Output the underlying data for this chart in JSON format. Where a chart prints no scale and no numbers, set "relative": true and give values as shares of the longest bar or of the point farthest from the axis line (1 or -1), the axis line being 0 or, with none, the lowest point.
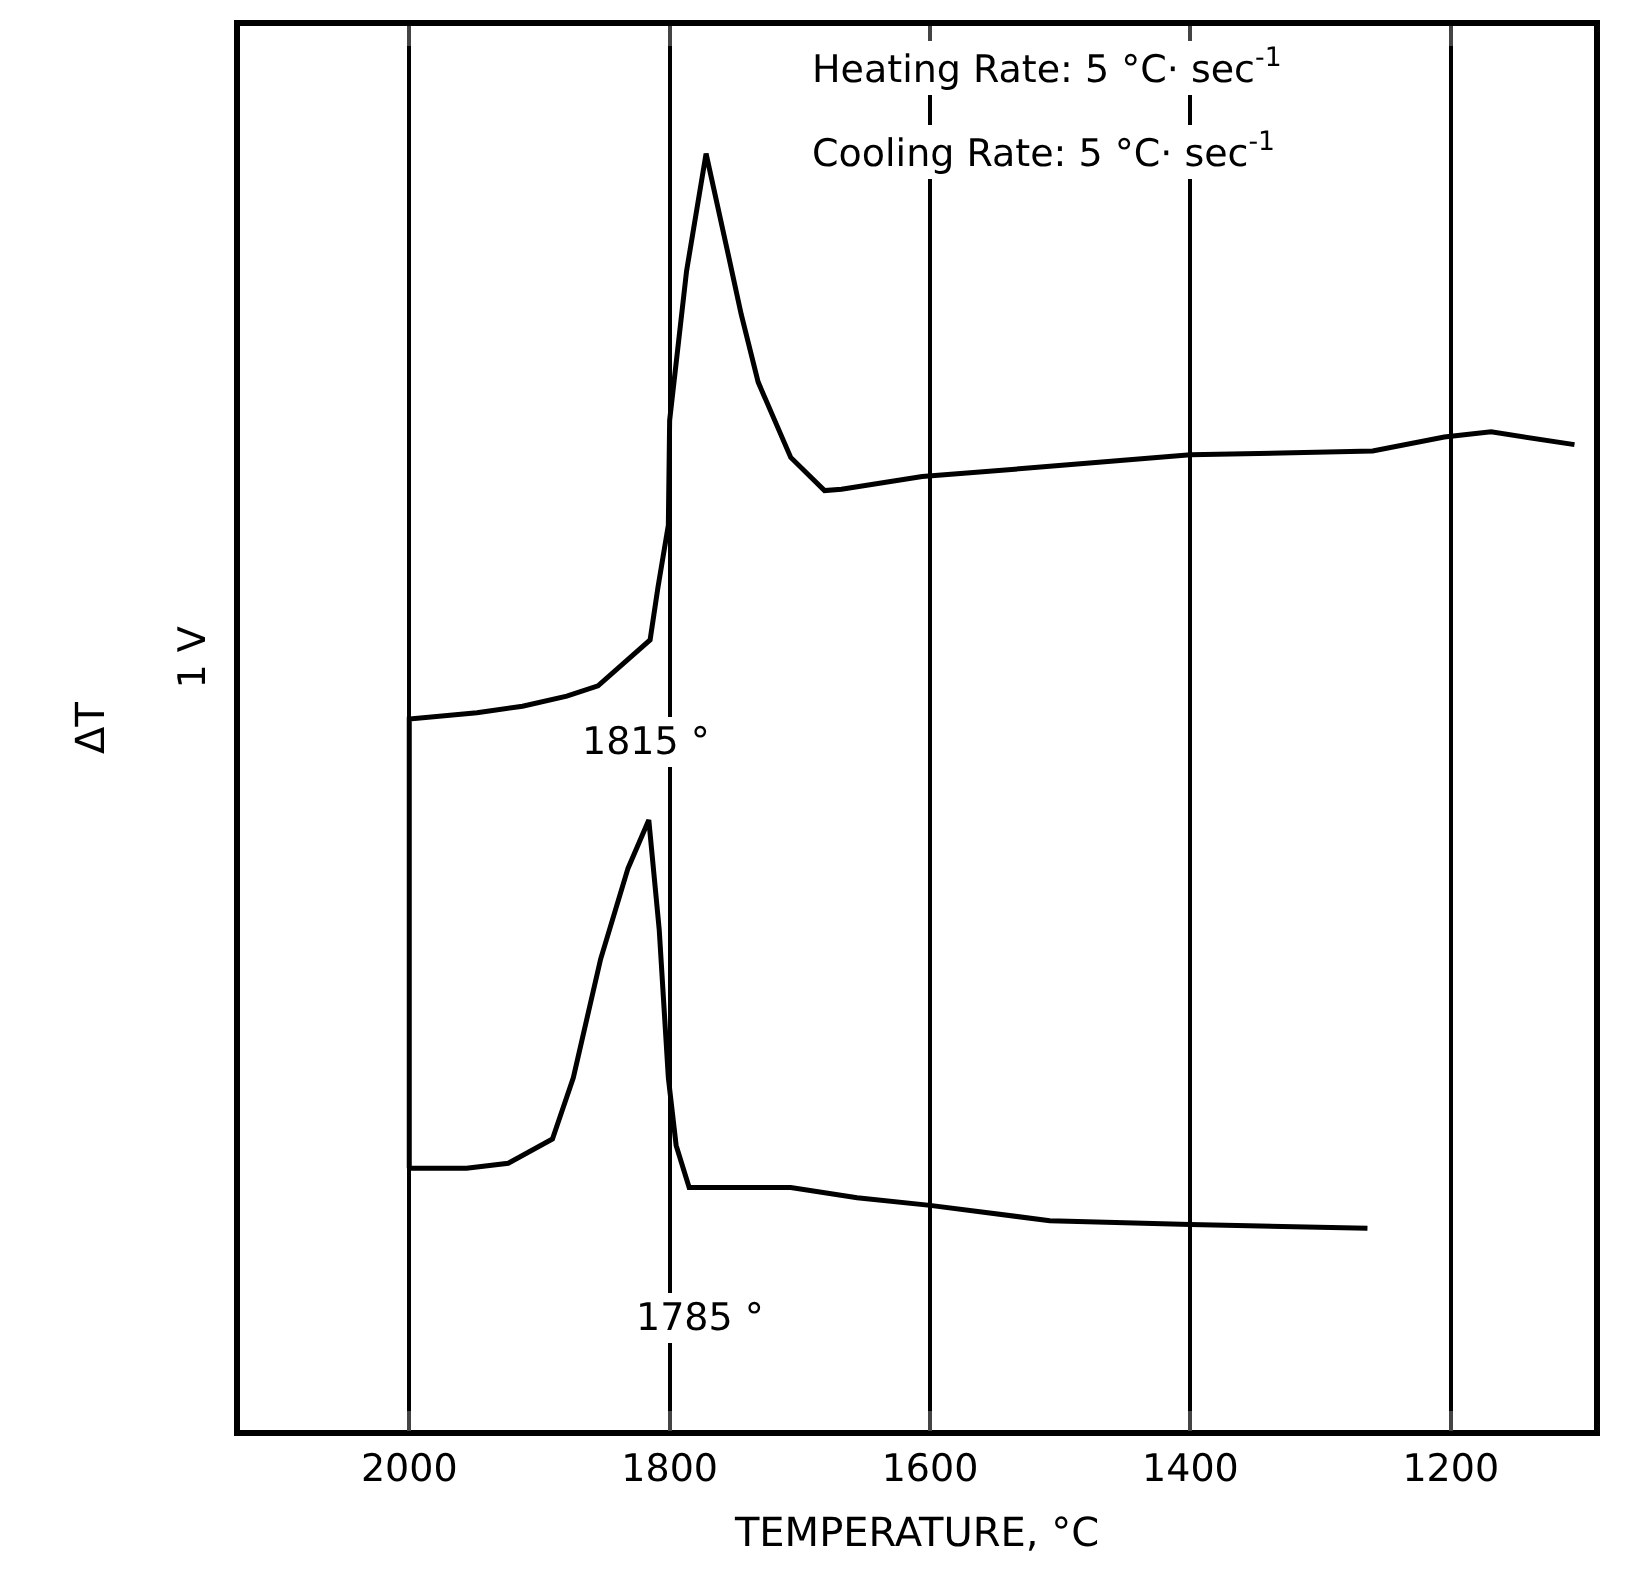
{
  "chart_data": {
    "type": "line",
    "relative": true,
    "xlabel": "TEMPERATURE, °C",
    "ylabel": "ΔT",
    "xlim": [
      2130,
      1090
    ],
    "xticks": [
      2000,
      1800,
      1600,
      1400,
      1200
    ],
    "grid": "x",
    "marker": "none",
    "line_style": "solid",
    "series": [
      {
        "color": "#000000",
        "x": [
          2000,
          2000,
          1948,
          1913,
          1879,
          1855,
          1815,
          1809,
          1801,
          1800,
          1787,
          1772,
          1755,
          1745,
          1732,
          1707,
          1681,
          1668,
          1606,
          1508,
          1400,
          1260,
          1205,
          1169,
          1105
        ],
        "values": [
          0.205,
          0.557,
          0.562,
          0.567,
          0.575,
          0.583,
          0.619,
          0.66,
          0.709,
          0.791,
          0.908,
          1,
          0.921,
          0.874,
          0.821,
          0.762,
          0.736,
          0.737,
          0.747,
          0.755,
          0.764,
          0.767,
          0.778,
          0.782,
          0.772
        ]
      },
      {
        "color": "#000000",
        "x": [
          2000,
          1956,
          1924,
          1890,
          1874,
          1853,
          1832,
          1816,
          1808,
          1801,
          1795,
          1785,
          1707,
          1656,
          1600,
          1508,
          1400,
          1264
        ],
        "values": [
          0.205,
          0.205,
          0.209,
          0.228,
          0.276,
          0.369,
          0.44,
          0.478,
          0.392,
          0.276,
          0.223,
          0.19,
          0.19,
          0.182,
          0.176,
          0.164,
          0.161,
          0.158
        ]
      }
    ],
    "annotations": [
      "Heating Rate: 5 °C· sec$^{-1}$",
      "Cooling Rate: 5 °C· sec$^{-1}$",
      "1815 °",
      "1785 °",
      "1 V"
    ]
  }
}
